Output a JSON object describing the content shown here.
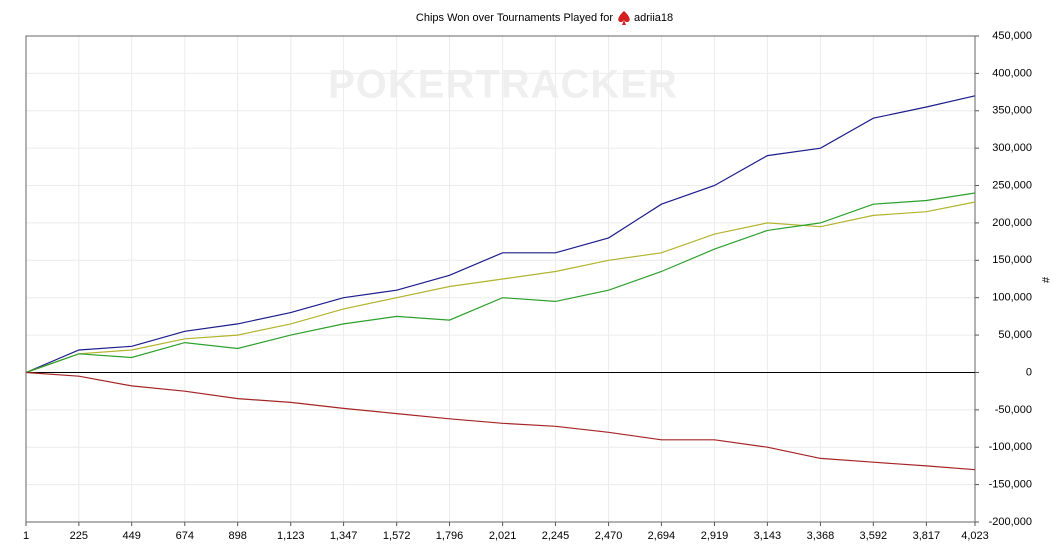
{
  "chart_data": {
    "type": "line",
    "title": "Chips Won over Tournaments Played for",
    "player": "adriia18",
    "watermark": "POKERTRACKER",
    "y_label": "#",
    "x": [
      1,
      225,
      449,
      674,
      898,
      1123,
      1347,
      1572,
      1796,
      2021,
      2245,
      2470,
      2694,
      2919,
      3143,
      3368,
      3592,
      3817,
      4023
    ],
    "series": [
      {
        "color": "#1c1c8c",
        "values": [
          0,
          30000,
          35000,
          55000,
          65000,
          80000,
          100000,
          110000,
          130000,
          160000,
          160000,
          180000,
          225000,
          250000,
          290000,
          300000,
          340000,
          355000,
          370000
        ]
      },
      {
        "color": "#b3b32e",
        "values": [
          0,
          25000,
          30000,
          45000,
          50000,
          65000,
          85000,
          100000,
          115000,
          125000,
          135000,
          150000,
          160000,
          185000,
          200000,
          195000,
          210000,
          215000,
          228000
        ]
      },
      {
        "color": "#2ca02c",
        "values": [
          0,
          25000,
          20000,
          40000,
          32000,
          50000,
          65000,
          75000,
          70000,
          100000,
          95000,
          110000,
          135000,
          165000,
          190000,
          200000,
          225000,
          230000,
          240000
        ]
      },
      {
        "color": "#a52525",
        "values": [
          0,
          -5000,
          -18000,
          -25000,
          -35000,
          -40000,
          -48000,
          -55000,
          -62000,
          -68000,
          -72000,
          -80000,
          -90000,
          -90000,
          -100000,
          -115000,
          -120000,
          -125000,
          -130000
        ]
      }
    ],
    "xlim": [
      1,
      4023
    ],
    "xticks": [
      1,
      225,
      449,
      674,
      898,
      {
        "value": 1123,
        "label": "1,123"
      },
      {
        "value": 1347,
        "label": "1,347"
      },
      {
        "value": 1572,
        "label": "1,572"
      },
      {
        "value": 1796,
        "label": "1,796"
      },
      {
        "value": 2021,
        "label": "2,021"
      },
      {
        "value": 2245,
        "label": "2,245"
      },
      {
        "value": 2470,
        "label": "2,470"
      },
      {
        "value": 2694,
        "label": "2,694"
      },
      {
        "value": 2919,
        "label": "2,919"
      },
      {
        "value": 3143,
        "label": "3,143"
      },
      {
        "value": 3368,
        "label": "3,368"
      },
      {
        "value": 3592,
        "label": "3,592"
      },
      {
        "value": 3817,
        "label": "3,817"
      },
      {
        "value": 4023,
        "label": "4,023"
      }
    ],
    "ylim": [
      -200000,
      450000
    ],
    "yticks": [
      {
        "value": -200000,
        "label": "-200,000"
      },
      {
        "value": -150000,
        "label": "-150,000"
      },
      {
        "value": -100000,
        "label": "-100,000"
      },
      {
        "value": -50000,
        "label": "-50,000"
      },
      0,
      {
        "value": 50000,
        "label": "50,000"
      },
      {
        "value": 100000,
        "label": "100,000"
      },
      {
        "value": 150000,
        "label": "150,000"
      },
      {
        "value": 200000,
        "label": "200,000"
      },
      {
        "value": 250000,
        "label": "250,000"
      },
      {
        "value": 300000,
        "label": "300,000"
      },
      {
        "value": 350000,
        "label": "350,000"
      },
      {
        "value": 400000,
        "label": "400,000"
      },
      {
        "value": 450000,
        "label": "450,000"
      }
    ],
    "grid": true
  }
}
